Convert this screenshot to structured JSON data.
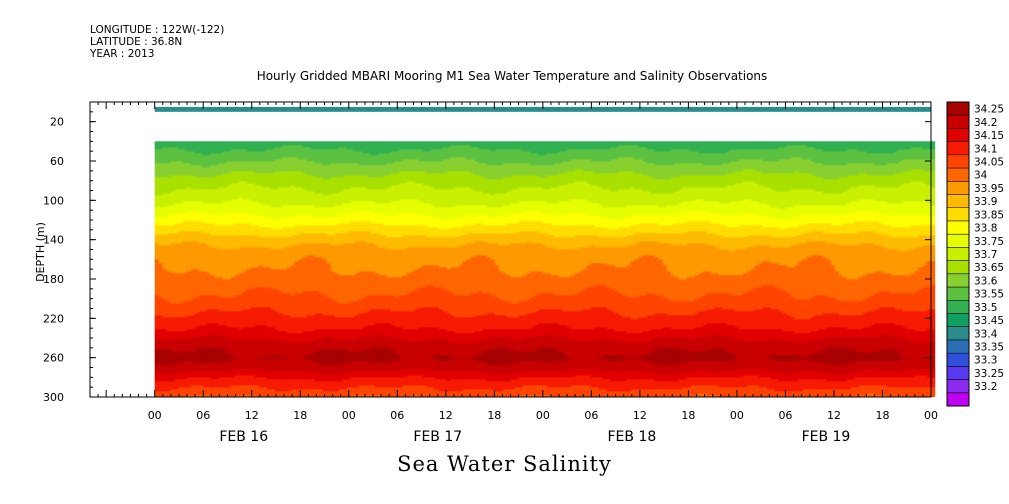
{
  "header": {
    "longitude": "LONGITUDE : 122W(-122)",
    "latitude": "LATITUDE : 36.8N",
    "year": "YEAR : 2013"
  },
  "chart_data": {
    "type": "heatmap",
    "title": "Hourly Gridded MBARI Mooring M1 Sea Water Temperature and Salinity Observations",
    "subtitle": "Sea Water Salinity",
    "ylabel": "DEPTH (m)",
    "xlabel": "",
    "ylim": [
      300,
      0
    ],
    "y_reversed": true,
    "y_ticks": [
      20,
      60,
      100,
      140,
      180,
      220,
      260,
      300
    ],
    "x_hour_ticks": [
      "00",
      "06",
      "12",
      "18",
      "00",
      "06",
      "12",
      "18",
      "00",
      "06",
      "12",
      "18",
      "00",
      "06",
      "12",
      "18",
      "00"
    ],
    "x_day_labels": [
      "FEB 16",
      "FEB 17",
      "FEB 18",
      "FEB 19"
    ],
    "x_range_hours": [
      -8,
      96
    ],
    "data_start_hour": 0,
    "colorbar_levels": [
      "34.25",
      "34.2",
      "34.15",
      "34.1",
      "34.05",
      "34",
      "33.95",
      "33.9",
      "33.85",
      "33.8",
      "33.75",
      "33.7",
      "33.65",
      "33.6",
      "33.55",
      "33.5",
      "33.45",
      "33.4",
      "33.35",
      "33.3",
      "33.25",
      "33.2"
    ],
    "colorbar_colors": [
      "#a80000",
      "#c80000",
      "#e00000",
      "#f51a00",
      "#ff4400",
      "#ff6600",
      "#ff9900",
      "#ffbb00",
      "#ffdd00",
      "#ffff00",
      "#e6ff00",
      "#c8f000",
      "#a8e000",
      "#88d030",
      "#5cc040",
      "#30b050",
      "#10a060",
      "#2a8c8c",
      "#2a6eb4",
      "#3050dc",
      "#5838f0",
      "#8a2cf0",
      "#c000f0"
    ],
    "surface_layer": {
      "depth_range": [
        5,
        10
      ],
      "value": 33.4
    },
    "profile_depths": [
      40,
      50,
      60,
      70,
      80,
      90,
      100,
      110,
      120,
      130,
      140,
      150,
      160,
      170,
      180,
      190,
      200,
      210,
      220,
      230,
      240,
      250,
      260,
      270,
      280,
      290,
      300
    ],
    "profile_values": [
      33.52,
      33.56,
      33.6,
      33.64,
      33.68,
      33.71,
      33.74,
      33.78,
      33.83,
      33.88,
      33.93,
      33.97,
      33.99,
      34.0,
      34.02,
      34.04,
      34.06,
      34.09,
      34.12,
      34.15,
      34.2,
      34.24,
      34.26,
      34.22,
      34.15,
      34.1,
      34.05
    ]
  }
}
